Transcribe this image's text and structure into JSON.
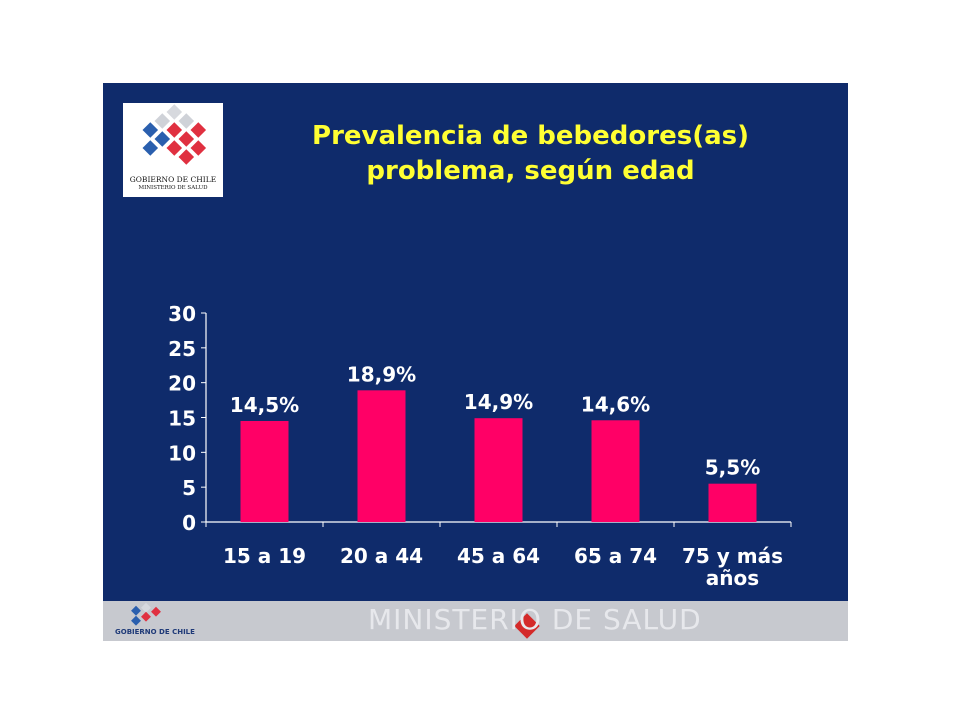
{
  "slide": {
    "title_line1": "Prevalencia de bebedores(as)",
    "title_line2": "problema, según edad",
    "background_color": "#0f2b6b",
    "title_color": "#ffff33"
  },
  "logo": {
    "line1": "GOBIERNO DE CHILE",
    "line2": "MINISTERIO DE SALUD"
  },
  "footer": {
    "brand": "GOBIERNO DE CHILE",
    "watermark": "MINISTERIO DE SALUD"
  },
  "chart_data": {
    "type": "bar",
    "categories": [
      "15 a 19",
      "20 a 44",
      "45 a 64",
      "65 a 74",
      "75 y más años"
    ],
    "category_lines": [
      [
        "15 a 19"
      ],
      [
        "20 a 44"
      ],
      [
        "45 a 64"
      ],
      [
        "65 a 74"
      ],
      [
        "75 y más",
        "años"
      ]
    ],
    "values": [
      14.5,
      18.9,
      14.9,
      14.6,
      5.5
    ],
    "data_labels": [
      "14,5%",
      "18,9%",
      "14,9%",
      "14,6%",
      "5,5%"
    ],
    "title": "Prevalencia de bebedores(as) problema, según edad",
    "xlabel": "",
    "ylabel": "",
    "ylim": [
      0,
      30
    ],
    "yticks": [
      0,
      5,
      10,
      15,
      20,
      25,
      30
    ],
    "grid": false,
    "bar_color": "#ff0066",
    "text_color": "#ffffff"
  }
}
